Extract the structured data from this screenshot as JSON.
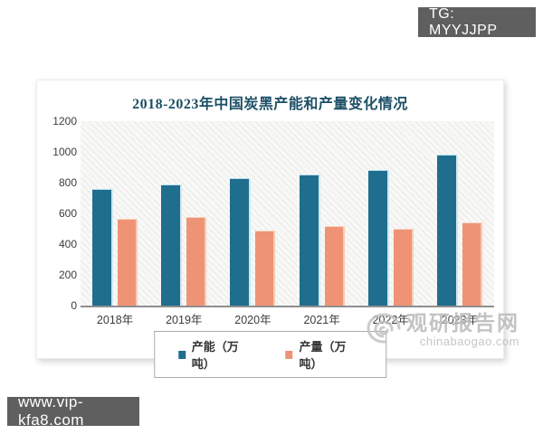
{
  "overlays": {
    "tg_badge": "TG: MYYJJPP",
    "site_badge": "www.vip-kfa8.com"
  },
  "watermark": {
    "name": "观研报告网",
    "domain": "chinabaogao.com"
  },
  "chart_data": {
    "type": "bar",
    "title": "2018-2023年中国炭黑产能和产量变化情况",
    "categories": [
      "2018年",
      "2019年",
      "2020年",
      "2021年",
      "2022年",
      "2023年"
    ],
    "series": [
      {
        "name": "产能（万吨）",
        "color": "#1f6e8e",
        "values": [
          760,
          790,
          830,
          855,
          885,
          980
        ]
      },
      {
        "name": "产量（万吨）",
        "color": "#ef9376",
        "values": [
          565,
          575,
          490,
          520,
          500,
          540
        ]
      }
    ],
    "xlabel": "",
    "ylabel": "",
    "ylim": [
      0,
      1200
    ],
    "yticks": [
      0,
      200,
      400,
      600,
      800,
      1000,
      1200
    ],
    "grid": false,
    "legend_position": "bottom",
    "plot_background": "diagonal-hatch"
  }
}
